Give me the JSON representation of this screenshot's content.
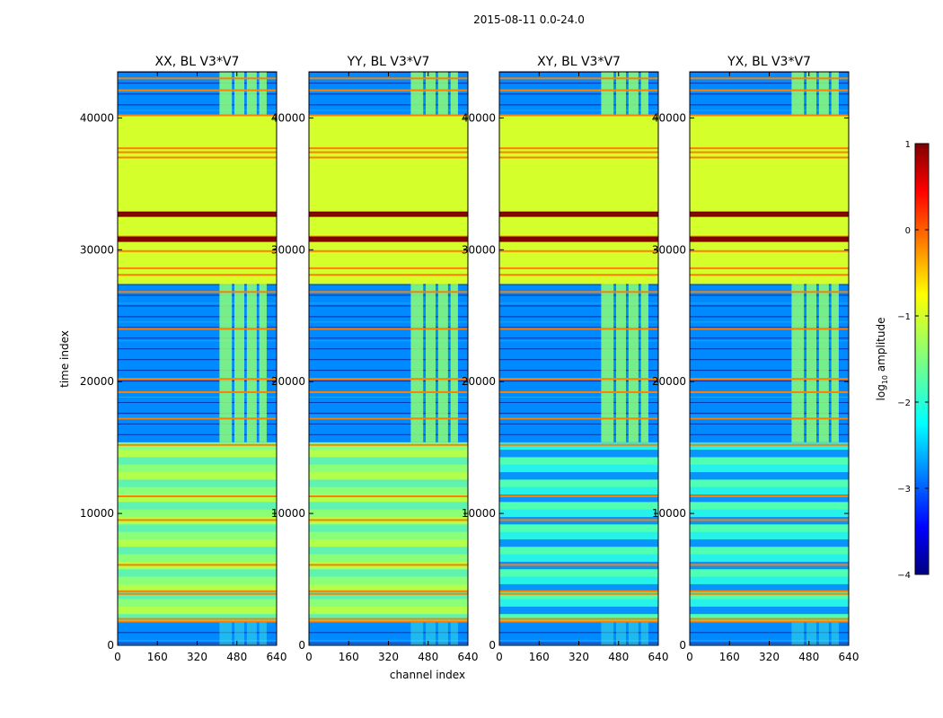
{
  "figure": {
    "suptitle": "2015-08-11 0.0-24.0",
    "xlabel": "channel index",
    "ylabel": "time index",
    "colorbar_label": "log",
    "colorbar_label_sub": "10",
    "colorbar_label_rest": " amplitude"
  },
  "colors": {
    "background": "#00007f",
    "noise_blue": "#0a3cff",
    "green": "#a0ff5f",
    "orange": "#ff7f00",
    "dark_red": "#800000",
    "cyan": "#40e8e0",
    "yellow_green": "#d6ff2a",
    "light_green": "#8cff78"
  },
  "chart_data": [
    {
      "type": "heatmap",
      "title": "XX, BL V3*V7",
      "xlim": [
        0,
        640
      ],
      "ylim": [
        0,
        43500
      ],
      "xticks": [
        0,
        160,
        320,
        480,
        640
      ],
      "yticks": [
        0,
        10000,
        20000,
        30000,
        40000
      ],
      "variant": "parallel",
      "regions": [
        {
          "name": "quiet-flagged-bottom",
          "y": [
            0,
            1800
          ],
          "value": -2.8
        },
        {
          "name": "smooth-band",
          "y": [
            1800,
            15400
          ],
          "value": -1.45
        },
        {
          "name": "noisy-band",
          "y": [
            15400,
            27400
          ],
          "value": -2.8
        },
        {
          "name": "flagged-block",
          "y": [
            27400,
            40200
          ],
          "value": -1.0
        },
        {
          "name": "noisy-top",
          "y": [
            40200,
            43500
          ],
          "value": -2.8
        }
      ],
      "rfi_channels": [
        [
          410,
          460
        ],
        [
          470,
          510
        ],
        [
          520,
          560
        ],
        [
          570,
          600
        ]
      ],
      "rfi_rows": [
        1800,
        2000,
        3900,
        4100,
        6100,
        9500,
        11300,
        15200,
        17200,
        19200,
        20200,
        24000,
        26800,
        28100,
        28600,
        29900,
        31000,
        37000,
        37400,
        37700,
        40200,
        42100,
        43000
      ],
      "strong_rows": [
        30700,
        30900,
        32600,
        32800
      ]
    },
    {
      "type": "heatmap",
      "title": "YY, BL V3*V7",
      "xlim": [
        0,
        640
      ],
      "ylim": [
        0,
        43500
      ],
      "xticks": [
        0,
        160,
        320,
        480,
        640
      ],
      "yticks": [
        0,
        10000,
        20000,
        30000,
        40000
      ],
      "variant": "parallel",
      "regions": [
        {
          "name": "quiet-flagged-bottom",
          "y": [
            0,
            1800
          ],
          "value": -2.8
        },
        {
          "name": "smooth-band",
          "y": [
            1800,
            15400
          ],
          "value": -1.45
        },
        {
          "name": "noisy-band",
          "y": [
            15400,
            27400
          ],
          "value": -2.8
        },
        {
          "name": "flagged-block",
          "y": [
            27400,
            40200
          ],
          "value": -1.0
        },
        {
          "name": "noisy-top",
          "y": [
            40200,
            43500
          ],
          "value": -2.8
        }
      ],
      "rfi_channels": [
        [
          410,
          460
        ],
        [
          470,
          510
        ],
        [
          520,
          560
        ],
        [
          570,
          600
        ]
      ],
      "rfi_rows": [
        1800,
        2000,
        3900,
        4100,
        6100,
        9500,
        11300,
        15200,
        17200,
        19200,
        20200,
        24000,
        26800,
        28100,
        28600,
        29900,
        31000,
        37000,
        37400,
        37700,
        40200,
        42100,
        43000
      ],
      "strong_rows": [
        30700,
        30900,
        32600,
        32800
      ]
    },
    {
      "type": "heatmap",
      "title": "XY, BL V3*V7",
      "xlim": [
        0,
        640
      ],
      "ylim": [
        0,
        43500
      ],
      "xticks": [
        0,
        160,
        320,
        480,
        640
      ],
      "yticks": [
        0,
        10000,
        20000,
        30000,
        40000
      ],
      "variant": "cross",
      "regions": [
        {
          "name": "quiet-flagged-bottom",
          "y": [
            0,
            1800
          ],
          "value": -2.8
        },
        {
          "name": "speckled-band",
          "y": [
            1800,
            15400
          ],
          "value": -2.2
        },
        {
          "name": "noisy-band",
          "y": [
            15400,
            27400
          ],
          "value": -2.8
        },
        {
          "name": "flagged-block",
          "y": [
            27400,
            40200
          ],
          "value": -1.0
        },
        {
          "name": "noisy-top",
          "y": [
            40200,
            43500
          ],
          "value": -2.8
        }
      ],
      "rfi_channels": [
        [
          410,
          460
        ],
        [
          470,
          510
        ],
        [
          520,
          560
        ],
        [
          570,
          600
        ]
      ],
      "rfi_rows": [
        1800,
        2000,
        3900,
        4100,
        6100,
        9500,
        11300,
        15200,
        17200,
        19200,
        20200,
        24000,
        26800,
        28100,
        28600,
        29900,
        31000,
        37000,
        37400,
        37700,
        40200,
        42100,
        43000
      ],
      "strong_rows": [
        30700,
        30900,
        32600,
        32800
      ]
    },
    {
      "type": "heatmap",
      "title": "YX, BL V3*V7",
      "xlim": [
        0,
        640
      ],
      "ylim": [
        0,
        43500
      ],
      "xticks": [
        0,
        160,
        320,
        480,
        640
      ],
      "yticks": [
        0,
        10000,
        20000,
        30000,
        40000
      ],
      "variant": "cross",
      "regions": [
        {
          "name": "quiet-flagged-bottom",
          "y": [
            0,
            1800
          ],
          "value": -2.8
        },
        {
          "name": "speckled-band",
          "y": [
            1800,
            15400
          ],
          "value": -2.2
        },
        {
          "name": "noisy-band",
          "y": [
            15400,
            27400
          ],
          "value": -2.8
        },
        {
          "name": "flagged-block",
          "y": [
            27400,
            40200
          ],
          "value": -1.0
        },
        {
          "name": "noisy-top",
          "y": [
            40200,
            43500
          ],
          "value": -2.8
        }
      ],
      "rfi_channels": [
        [
          410,
          460
        ],
        [
          470,
          510
        ],
        [
          520,
          560
        ],
        [
          570,
          600
        ]
      ],
      "rfi_rows": [
        1800,
        2000,
        3900,
        4100,
        6100,
        9500,
        11300,
        15200,
        17200,
        19200,
        20200,
        24000,
        26800,
        28100,
        28600,
        29900,
        31000,
        37000,
        37400,
        37700,
        40200,
        42100,
        43000
      ],
      "strong_rows": [
        30700,
        30900,
        32600,
        32800
      ]
    },
    {
      "type": "colorbar",
      "colormap": "jet",
      "vlim": [
        -4,
        1
      ],
      "ticks": [
        1,
        0,
        -1,
        -2,
        -3,
        -4
      ],
      "tick_labels": [
        "1",
        "0",
        "−1",
        "−2",
        "−3",
        "−4"
      ]
    }
  ]
}
